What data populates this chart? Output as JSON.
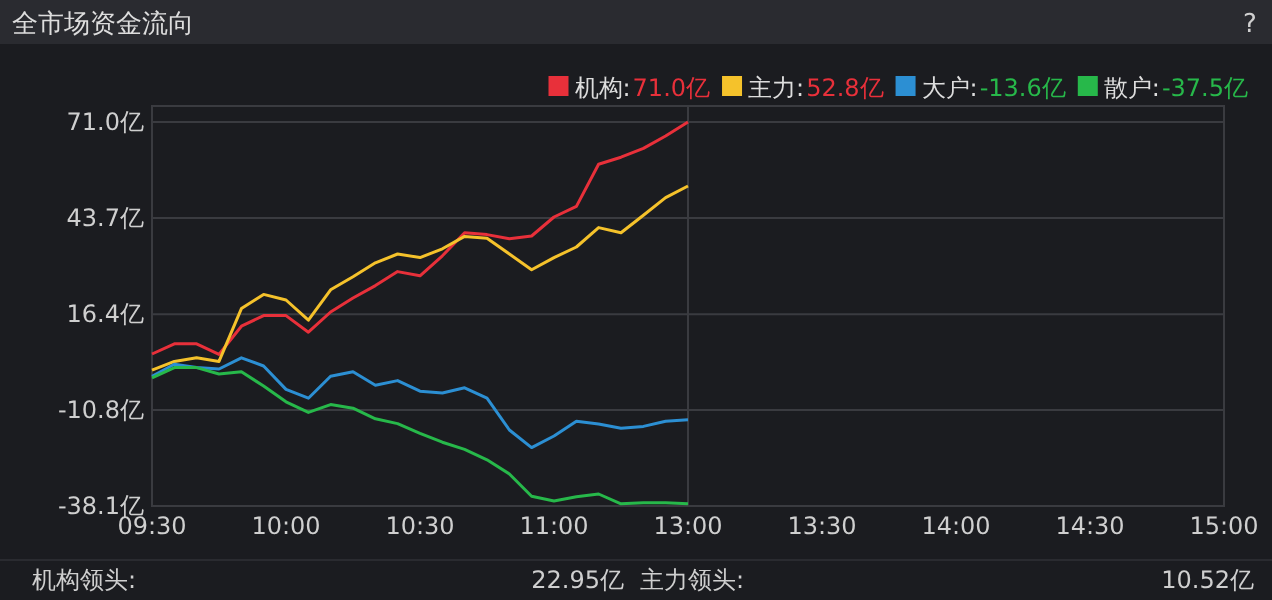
{
  "chart_data": {
    "type": "line",
    "title": "全市场资金流向",
    "categories": [
      "09:30",
      null,
      null,
      null,
      null,
      null,
      "10:00",
      null,
      null,
      null,
      null,
      null,
      "10:30",
      null,
      null,
      null,
      null,
      null,
      "11:00",
      null,
      null,
      null,
      null,
      null,
      "13:00",
      null,
      null,
      null,
      null,
      null,
      "13:30",
      null,
      null,
      null,
      null,
      null,
      "14:00",
      null,
      null,
      null,
      null,
      null,
      "14:30",
      null,
      null,
      null,
      null,
      null,
      "15:00"
    ],
    "ylim": [
      -38.1,
      71.0
    ],
    "yticks": [
      {
        "value": -38.1,
        "label": "-38.1亿"
      },
      {
        "value": -10.8,
        "label": "-10.8亿"
      },
      {
        "value": 16.4,
        "label": "16.4亿"
      },
      {
        "value": 43.7,
        "label": "43.7亿"
      },
      {
        "value": 71.0,
        "label": "71.0亿"
      }
    ],
    "grid": "y",
    "legend": "top right",
    "marker": "none",
    "line_style": "solid",
    "ref_lines": [
      {
        "axis": "x",
        "value": "13:00",
        "color": "#3a3b40"
      }
    ],
    "series": [
      {
        "name": "机构:",
        "color": "#e8303a",
        "values": [
          5.1,
          8,
          8,
          5,
          13,
          16,
          16,
          11.3,
          17,
          21,
          24.5,
          28.5,
          27.3,
          33,
          39.5,
          39,
          37.8,
          38.6,
          44,
          47,
          59,
          61,
          63.5,
          67,
          71.0,
          null,
          null,
          null,
          null,
          null,
          null,
          null,
          null,
          null,
          null,
          null,
          null,
          null,
          null,
          null,
          null,
          null,
          null,
          null,
          null,
          null,
          null,
          null,
          null
        ]
      },
      {
        "name": "主力:",
        "color": "#f5c22b",
        "values": [
          0.5,
          3,
          4,
          3,
          18,
          22,
          20.4,
          14.7,
          23.3,
          27,
          31,
          33.5,
          32.5,
          35,
          38.5,
          38,
          33.5,
          29,
          32.5,
          35.5,
          41,
          39.5,
          44.5,
          49.5,
          52.8,
          null,
          null,
          null,
          null,
          null,
          null,
          null,
          null,
          null,
          null,
          null,
          null,
          null,
          null,
          null,
          null,
          null,
          null,
          null,
          null,
          null,
          null,
          null,
          null
        ]
      },
      {
        "name": "大户:",
        "color": "#2c8fd3",
        "values": [
          -1.2,
          2.2,
          1.3,
          0.8,
          4,
          1.7,
          -5,
          -7.5,
          -1.2,
          0,
          -3.8,
          -2.5,
          -5.5,
          -6,
          -4.5,
          -7.5,
          -16.5,
          -21.5,
          -18.2,
          -14,
          -14.8,
          -16,
          -15.5,
          -14,
          -13.6,
          null,
          null,
          null,
          null,
          null,
          null,
          null,
          null,
          null,
          null,
          null,
          null,
          null,
          null,
          null,
          null,
          null,
          null,
          null,
          null,
          null,
          null,
          null,
          null
        ]
      },
      {
        "name": "散户:",
        "color": "#27b84a",
        "values": [
          -1.7,
          1.2,
          1.2,
          -0.6,
          0,
          -4,
          -8.5,
          -11.5,
          -9.3,
          -10.3,
          -13.3,
          -14.7,
          -17.5,
          -20,
          -22,
          -25,
          -29,
          -35.3,
          -36.7,
          -35.5,
          -34.7,
          -37.5,
          -37.2,
          -37.2,
          -37.5,
          null,
          null,
          null,
          null,
          null,
          null,
          null,
          null,
          null,
          null,
          null,
          null,
          null,
          null,
          null,
          null,
          null,
          null,
          null,
          null,
          null,
          null,
          null,
          null
        ]
      }
    ],
    "annotations": [
      "71.0亿",
      "52.8亿",
      "-13.6亿",
      "-37.5亿",
      "?",
      "机构领头:",
      "22.95亿",
      "主力领头:",
      "10.52亿"
    ]
  }
}
